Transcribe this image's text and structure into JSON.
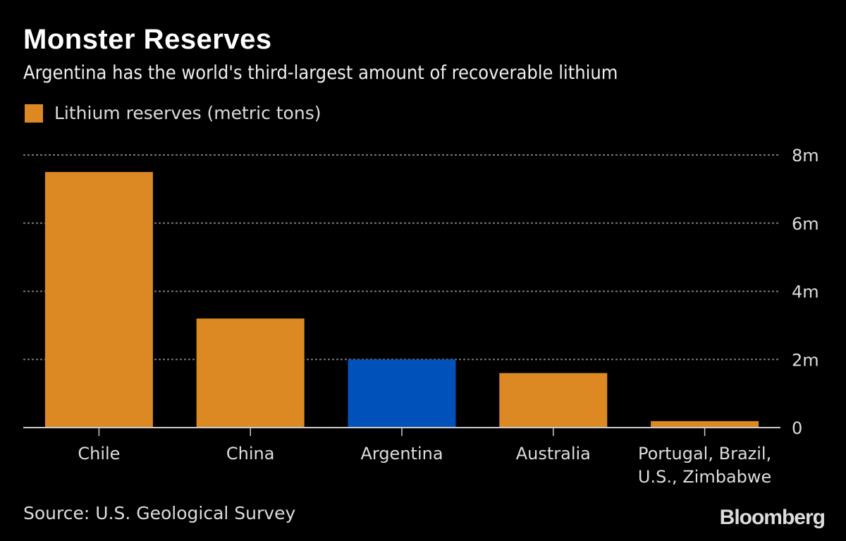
{
  "chart_data": {
    "type": "bar",
    "title": "Monster Reserves",
    "subtitle": "Argentina has the world's third-largest amount of recoverable lithium",
    "legend": [
      {
        "name": "Lithium reserves (metric tons)",
        "color": "#dc8924"
      }
    ],
    "categories": [
      "Chile",
      "China",
      "Argentina",
      "Australia",
      "Portugal, Brazil,\nU.S., Zimbabwe"
    ],
    "values": [
      7500000,
      3200000,
      2000000,
      1600000,
      190000
    ],
    "colors": [
      "#dc8924",
      "#dc8924",
      "#0051ba",
      "#dc8924",
      "#dc8924"
    ],
    "highlight": "Argentina",
    "ylim": [
      0,
      8000000
    ],
    "yticks": [
      0,
      2000000,
      4000000,
      6000000,
      8000000
    ],
    "ytick_labels": [
      "0",
      "2m",
      "4m",
      "6m",
      "8m"
    ],
    "y_axis_side": "right",
    "grid": true,
    "legend_placement": "top-left",
    "xlabel": "",
    "ylabel": ""
  },
  "footer": {
    "source": "Source: U.S. Geological Survey",
    "logo": "Bloomberg"
  }
}
